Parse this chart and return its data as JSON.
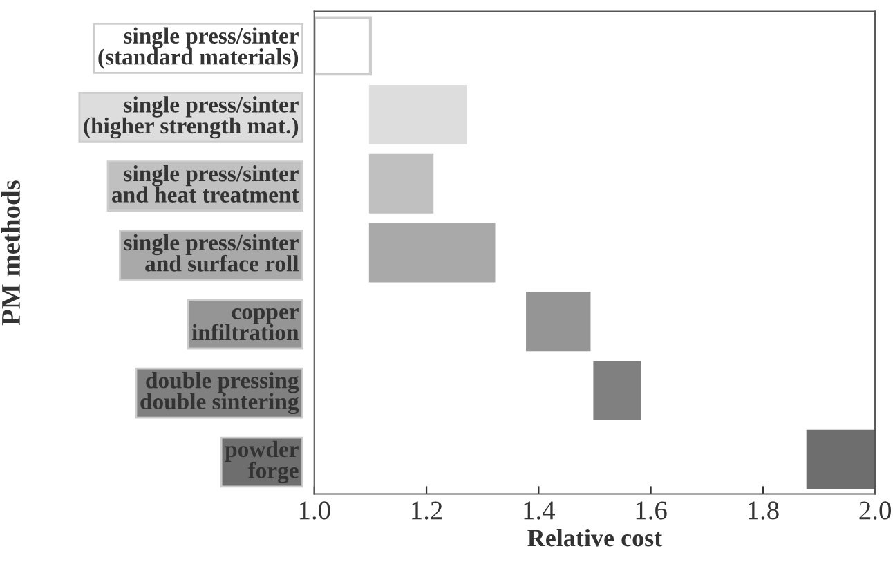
{
  "chart_data": {
    "type": "bar",
    "orientation": "horizontal",
    "xlabel": "Relative cost",
    "ylabel": "PM methods",
    "categories": [
      "single press/sinter\n(standard materials)",
      "single press/sinter\n(higher strength mat.)",
      "single press/sinter\nand heat treatment",
      "single press/sinter\nand surface roll",
      "copper\ninfiltration",
      "double pressing\ndouble sintering",
      "powder\nforge"
    ],
    "base": [
      1.0,
      1.1,
      1.1,
      1.1,
      1.38,
      1.5,
      1.88
    ],
    "values": [
      0.1,
      0.17,
      0.11,
      0.22,
      0.11,
      0.08,
      0.12
    ],
    "colors": [
      "#ffffff",
      "#dddddd",
      "#c0c0c0",
      "#a9a9a9",
      "#959595",
      "#808080",
      "#6e6e6e"
    ],
    "xlim": [
      1.0,
      2.0
    ],
    "xticks": [
      {
        "value": 1.0,
        "label": "1.0"
      },
      1.2,
      1.4,
      1.6,
      1.8,
      {
        "value": 2.0,
        "label": "2.0"
      }
    ],
    "grid": false,
    "legend": false
  }
}
